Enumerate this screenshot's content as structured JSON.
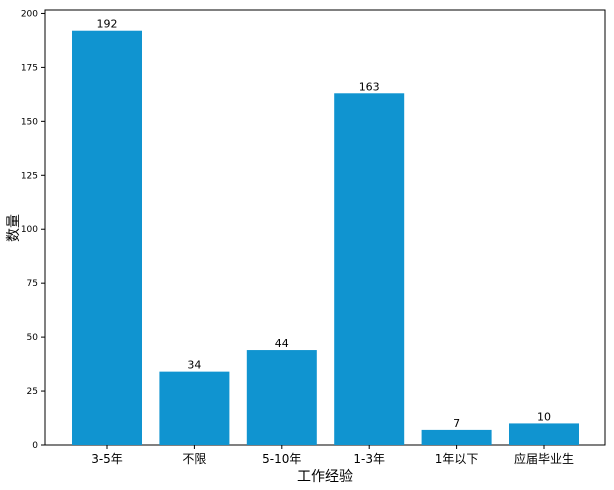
{
  "chart_data": {
    "type": "bar",
    "categories": [
      "3-5年",
      "不限",
      "5-10年",
      "1-3年",
      "1年以下",
      "应届毕业生"
    ],
    "values": [
      192,
      34,
      44,
      163,
      7,
      10
    ],
    "xlabel": "工作经验",
    "ylabel": "数量",
    "ylim": [
      0,
      201.6
    ],
    "yticks": [
      0,
      25,
      50,
      75,
      100,
      125,
      150,
      175,
      200
    ],
    "grid": false,
    "bar_color": "#1094d0"
  }
}
